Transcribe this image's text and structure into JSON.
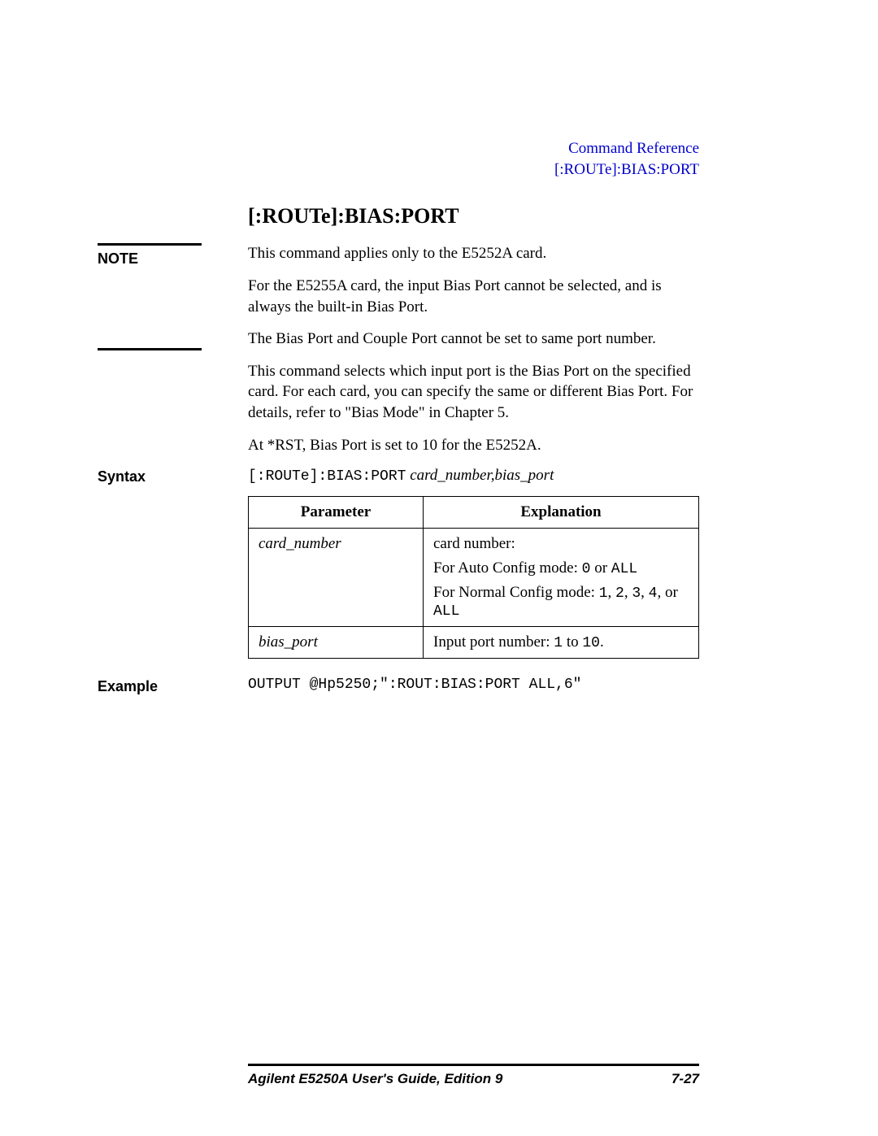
{
  "header": {
    "line1": "Command Reference",
    "line2": "[:ROUTe]:BIAS:PORT",
    "color": "#0000cc"
  },
  "title": "[:ROUTe]:BIAS:PORT",
  "note_label": "NOTE",
  "note": {
    "p1": "This command applies only to the E5252A card.",
    "p2": "For the E5255A card, the input Bias Port cannot be selected, and is always the built-in Bias Port.",
    "p3": "The Bias Port and Couple Port cannot be set to same port number."
  },
  "body": {
    "p1": "This command selects which input port is the Bias Port on the specified card. For each card, you can specify the same or different Bias Port. For details, refer to \"Bias Mode\" in Chapter 5.",
    "p2": "At *RST, Bias Port is set to 10 for the E5252A."
  },
  "syntax_label": "Syntax",
  "syntax": {
    "cmd": "[:ROUTe]:BIAS:PORT",
    "args": "card_number,bias_port"
  },
  "table": {
    "header_param": "Parameter",
    "header_exp": "Explanation",
    "rows": [
      {
        "param": "card_number",
        "exp_lines": [
          {
            "pre": "card number:",
            "mono": ""
          },
          {
            "pre": "For Auto Config mode: ",
            "mono": "0",
            "mid": " or ",
            "mono2": "ALL"
          },
          {
            "pre": "For Normal Config mode: ",
            "mono": "1",
            "c1": ", ",
            "mono2": "2",
            "c2": ", ",
            "mono3": "3",
            "c3": ", ",
            "mono4": "4",
            "c4": ", or ",
            "mono5": "ALL"
          }
        ]
      },
      {
        "param": "bias_port",
        "exp_lines": [
          {
            "pre": "Input port number: ",
            "mono": "1",
            "mid": " to ",
            "mono2": "10",
            "post": "."
          }
        ]
      }
    ]
  },
  "example_label": "Example",
  "example_code": "OUTPUT @Hp5250;\":ROUT:BIAS:PORT ALL,6\"",
  "footer": {
    "guide": "Agilent E5250A User's Guide, Edition 9",
    "page": "7-27"
  }
}
